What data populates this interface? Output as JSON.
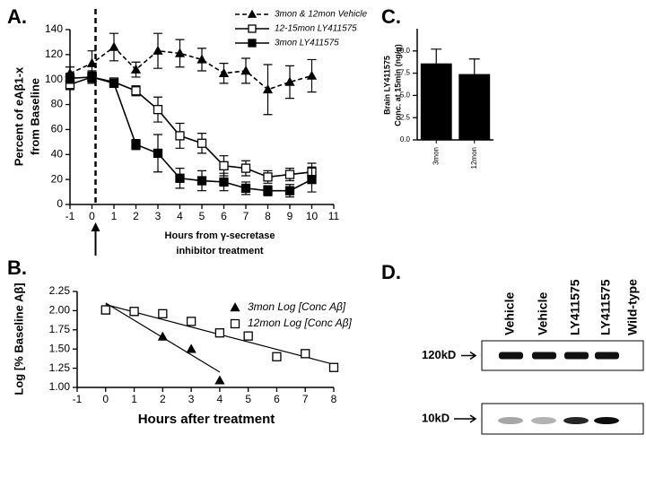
{
  "chart_data": [
    {
      "label": "A.",
      "type": "line",
      "ylabel": [
        "Percent of eAβ1-x",
        "from Baseline"
      ],
      "xlabel": [
        "Hours from γ-secretase",
        "inhibitor treatment"
      ],
      "xlim": [
        -1,
        11
      ],
      "xticks": [
        -1,
        0,
        1,
        2,
        3,
        4,
        5,
        6,
        7,
        8,
        9,
        10,
        11
      ],
      "ylim": [
        0,
        140
      ],
      "yticks": [
        0,
        20,
        40,
        60,
        80,
        100,
        120,
        140
      ],
      "series": [
        {
          "name": "3mon & 12mon Vehicle",
          "color": "#000000",
          "dashed": true,
          "marker": "triangle",
          "filled": true,
          "x": [
            -1,
            0,
            1,
            2,
            3,
            4,
            5,
            6,
            7,
            8,
            9,
            10
          ],
          "values": [
            105,
            113,
            126,
            108,
            123,
            121,
            116,
            105,
            107,
            92,
            98,
            103
          ],
          "errors": [
            5,
            10,
            11,
            6,
            14,
            11,
            9,
            8,
            10,
            20,
            13,
            13
          ]
        },
        {
          "name": "12-15mon LY411575",
          "color": "#000000",
          "dashed": false,
          "marker": "square",
          "filled": false,
          "x": [
            -1,
            0,
            1,
            2,
            3,
            4,
            5,
            6,
            7,
            8,
            9,
            10
          ],
          "values": [
            96,
            102,
            98,
            91,
            76,
            55,
            49,
            31,
            29,
            22,
            24,
            26
          ],
          "errors": [
            4,
            5,
            3,
            4,
            10,
            10,
            8,
            8,
            6,
            5,
            5,
            7
          ]
        },
        {
          "name": "3mon LY411575",
          "color": "#000000",
          "dashed": false,
          "marker": "square",
          "filled": true,
          "x": [
            -1,
            0,
            1,
            2,
            3,
            4,
            5,
            6,
            7,
            8,
            9,
            10
          ],
          "values": [
            101,
            102,
            97,
            48,
            41,
            21,
            19,
            18,
            13,
            11,
            11,
            20
          ],
          "errors": [
            4,
            4,
            3,
            4,
            15,
            8,
            8,
            7,
            5,
            4,
            5,
            10
          ]
        }
      ]
    },
    {
      "label": "B.",
      "type": "scatter",
      "ylabel": "Log [% Baseline Aβ]",
      "xlabel": "Hours after treatment",
      "xlim": [
        -1,
        8
      ],
      "xticks": [
        -1,
        0,
        1,
        2,
        3,
        4,
        5,
        6,
        7,
        8
      ],
      "ylim": [
        1,
        2.25
      ],
      "yticks": [
        {
          "value": 1,
          "label": "1.00"
        },
        {
          "value": 1.25,
          "label": "1.25"
        },
        {
          "value": 1.5,
          "label": "1.50"
        },
        {
          "value": 1.75,
          "label": "1.75"
        },
        {
          "value": 2,
          "label": "2.00"
        },
        {
          "value": 2.25,
          "label": "2.25"
        }
      ],
      "series": [
        {
          "name": "3mon Log [Conc Aβ]",
          "color": "#000000",
          "marker": "triangle",
          "filled": true,
          "x": [
            0,
            1,
            2,
            3,
            4
          ],
          "values": [
            2.0,
            1.98,
            1.66,
            1.5,
            1.09
          ],
          "trend": {
            "x": [
              0,
              4
            ],
            "values": [
              2.1,
              1.2
            ]
          }
        },
        {
          "name": "12mon Log [Conc Aβ]",
          "color": "#000000",
          "marker": "square",
          "filled": false,
          "x": [
            0,
            1,
            2,
            3,
            4,
            5,
            6,
            7,
            8
          ],
          "values": [
            2.01,
            1.99,
            1.96,
            1.86,
            1.71,
            1.67,
            1.4,
            1.44,
            1.26
          ],
          "trend": {
            "x": [
              0,
              8
            ],
            "values": [
              2.08,
              1.3
            ]
          }
        }
      ]
    },
    {
      "label": "C.",
      "type": "bar",
      "ylabel": [
        "Brain LY411575",
        "Conc. at 15min (ng/g)"
      ],
      "color": "#000000",
      "categories": [
        "3mon",
        "12mon"
      ],
      "values": [
        8.6,
        7.4
      ],
      "errors": [
        1.6,
        1.7
      ],
      "ylim": [
        0,
        12.5
      ],
      "yticks": [
        {
          "value": 0,
          "label": "0.0"
        },
        {
          "value": 2.5,
          "label": "2.5"
        },
        {
          "value": 5,
          "label": "5.0"
        },
        {
          "value": 7.5,
          "label": "7.5"
        },
        {
          "value": 10,
          "label": "10.0"
        }
      ]
    }
  ],
  "blot": {
    "label": "D.",
    "lanes": [
      "Vehicle",
      "Vehicle",
      "LY411575",
      "LY411575",
      "Wild-type"
    ],
    "rows": [
      "120kD",
      "10kD"
    ]
  }
}
